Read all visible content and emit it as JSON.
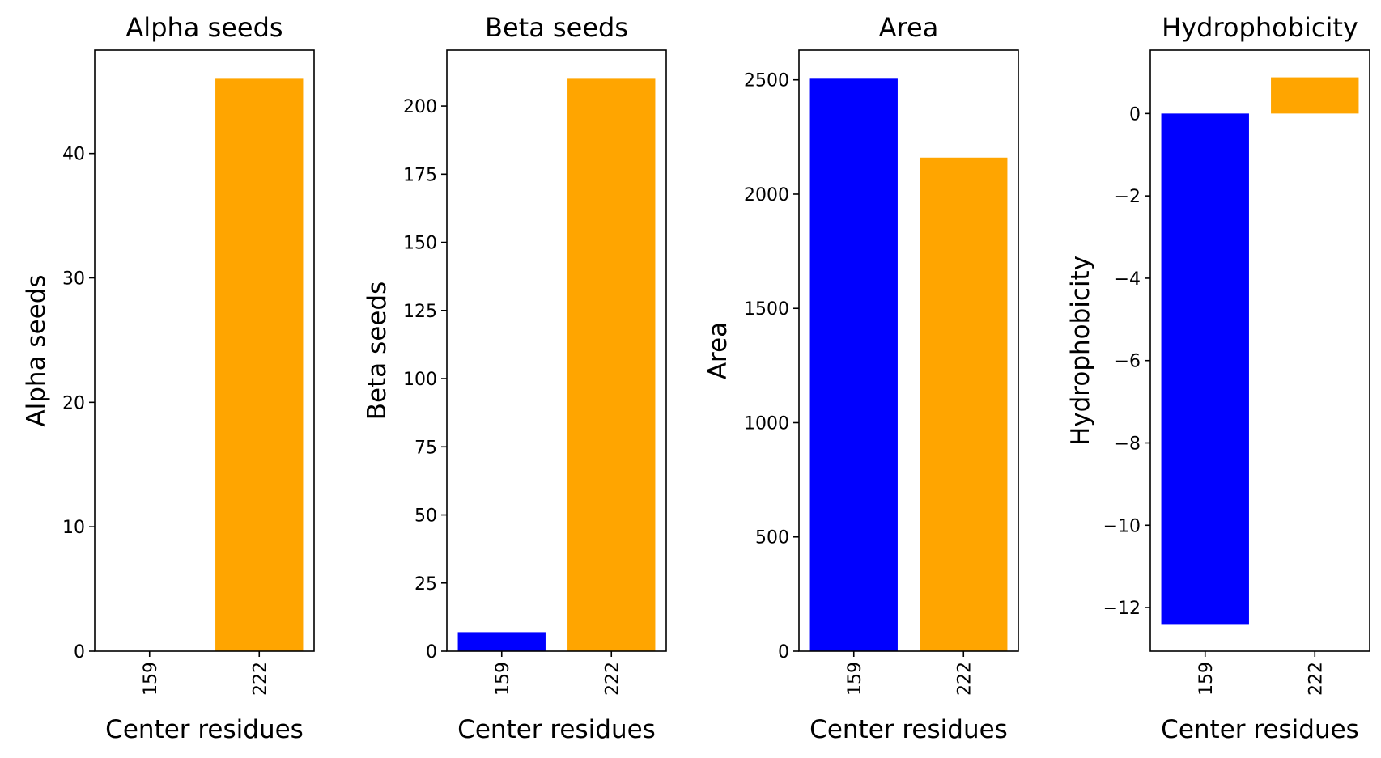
{
  "chart_data": [
    {
      "type": "bar",
      "title": "Alpha seeds",
      "xlabel": "Center residues",
      "ylabel": "Alpha seeds",
      "categories": [
        "159",
        "222"
      ],
      "values": [
        0,
        46
      ],
      "colors": [
        "#0000ff",
        "#ffa500"
      ],
      "ylim": [
        0,
        48.3
      ],
      "yticks": [
        0,
        10,
        20,
        30,
        40
      ],
      "ytick_labels": [
        "0",
        "10",
        "20",
        "30",
        "40"
      ],
      "grid": false
    },
    {
      "type": "bar",
      "title": "Beta seeds",
      "xlabel": "Center residues",
      "ylabel": "Beta seeds",
      "categories": [
        "159",
        "222"
      ],
      "values": [
        7,
        210
      ],
      "colors": [
        "#0000ff",
        "#ffa500"
      ],
      "ylim": [
        0,
        220.5
      ],
      "yticks": [
        0,
        25,
        50,
        75,
        100,
        125,
        150,
        175,
        200
      ],
      "ytick_labels": [
        "0",
        "25",
        "50",
        "75",
        "100",
        "125",
        "150",
        "175",
        "200"
      ],
      "grid": false
    },
    {
      "type": "bar",
      "title": "Area",
      "xlabel": "Center residues",
      "ylabel": "Area",
      "categories": [
        "159",
        "222"
      ],
      "values": [
        2505,
        2160
      ],
      "colors": [
        "#0000ff",
        "#ffa500"
      ],
      "ylim": [
        0,
        2630
      ],
      "yticks": [
        0,
        500,
        1000,
        1500,
        2000,
        2500
      ],
      "ytick_labels": [
        "0",
        "500",
        "1000",
        "1500",
        "2000",
        "2500"
      ],
      "grid": false
    },
    {
      "type": "bar",
      "title": "Hydrophobicity",
      "xlabel": "Center residues",
      "ylabel": "Hydrophobicity",
      "categories": [
        "159",
        "222"
      ],
      "values": [
        -12.4,
        0.88
      ],
      "colors": [
        "#0000ff",
        "#ffa500"
      ],
      "ylim": [
        -13.06,
        1.54
      ],
      "yticks": [
        -12,
        -10,
        -8,
        -6,
        -4,
        -2,
        0
      ],
      "ytick_labels": [
        "−12",
        "−10",
        "−8",
        "−6",
        "−4",
        "−2",
        "0"
      ],
      "grid": false
    }
  ]
}
